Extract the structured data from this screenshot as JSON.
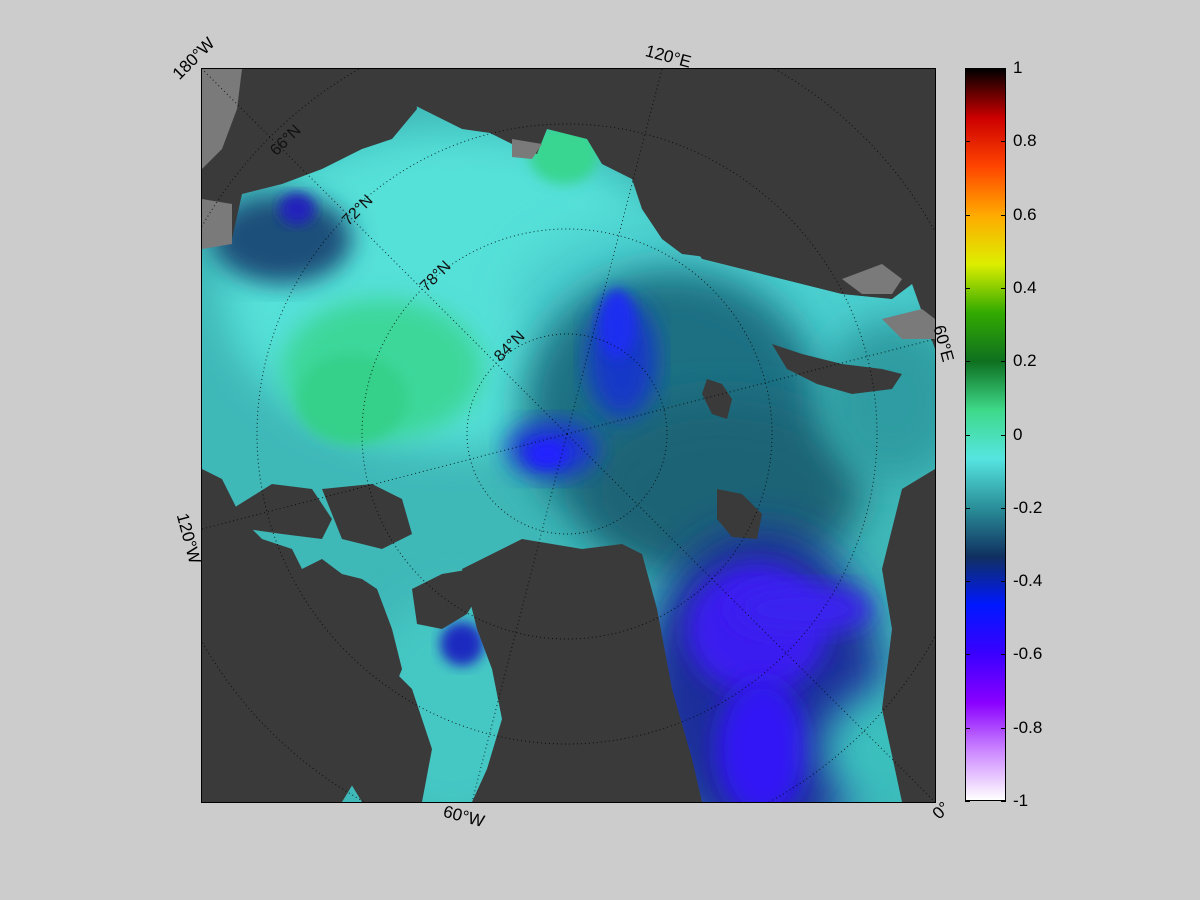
{
  "map": {
    "projection": "north-polar-stereographic",
    "parallels_labels": [
      "66°N",
      "72°N",
      "78°N",
      "84°N"
    ],
    "meridian_labels": [
      "180°W",
      "120°E",
      "60°E",
      "0°",
      "60°W",
      "120°W"
    ]
  },
  "colorbar": {
    "min": -1,
    "max": 1,
    "ticks": [
      "1",
      "0.8",
      "0.6",
      "0.4",
      "0.2",
      "0",
      "-0.2",
      "-0.4",
      "-0.6",
      "-0.8",
      "-1"
    ],
    "colormap": [
      "#ffffff",
      "#cc88ff",
      "#8a00ff",
      "#3a00ff",
      "#0018ff",
      "#103060",
      "#2a8f99",
      "#55e5e0",
      "#3fd98a",
      "#0e7020",
      "#33aa00",
      "#ddee00",
      "#ffaa00",
      "#ff4400",
      "#cc0000",
      "#000000"
    ]
  },
  "colors": {
    "background": "#cccccc",
    "land": "#3a3a3a",
    "grounded_ice": "#7a7a7a",
    "grid": "#000000"
  }
}
